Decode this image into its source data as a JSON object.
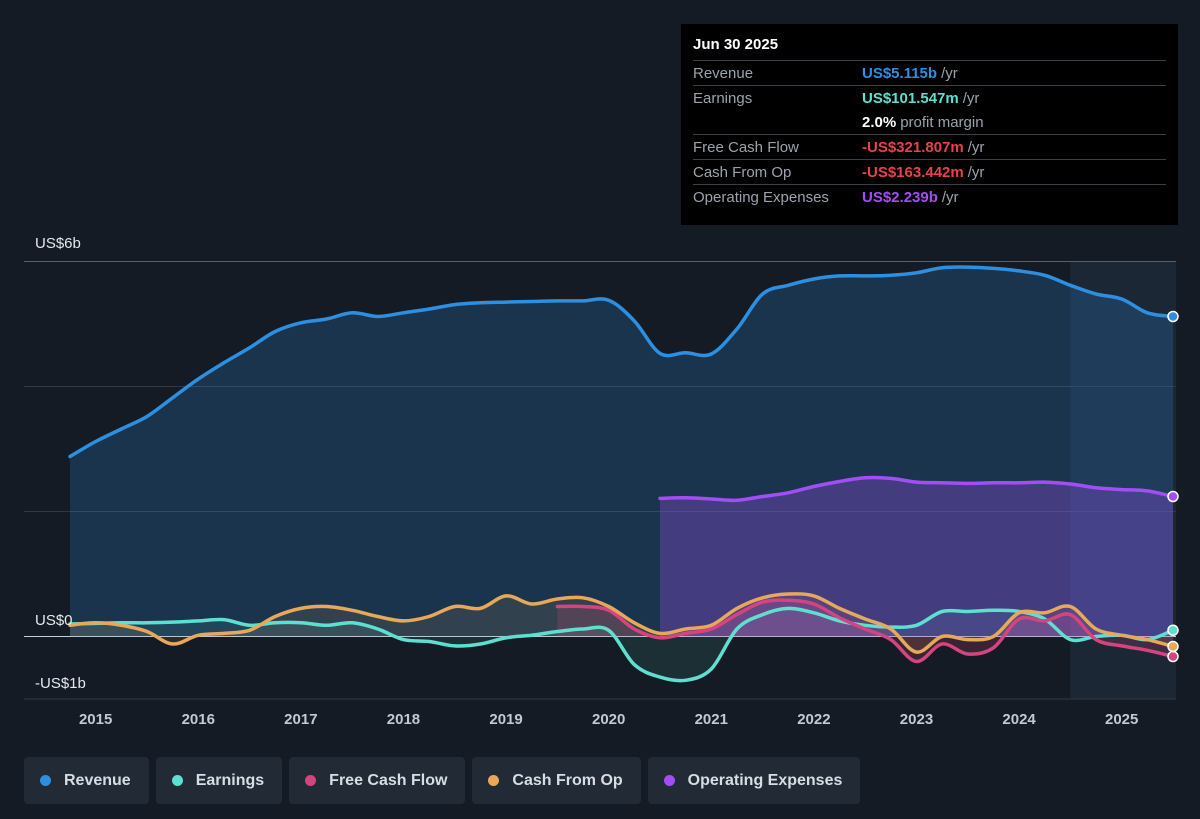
{
  "tooltip": {
    "date": "Jun 30 2025",
    "rows": [
      {
        "label": "Revenue",
        "value": "US$5.115b",
        "unit": "/yr",
        "color": "#2e8fe0"
      },
      {
        "label": "Earnings",
        "value": "US$101.547m",
        "unit": "/yr",
        "color": "#5ee0d0"
      },
      {
        "label": "",
        "value": "2.0%",
        "unit": "profit margin",
        "color": "#ffffff"
      },
      {
        "label": "Free Cash Flow",
        "value": "-US$321.807m",
        "unit": "/yr",
        "color": "#e8424e"
      },
      {
        "label": "Cash From Op",
        "value": "-US$163.442m",
        "unit": "/yr",
        "color": "#e8424e"
      },
      {
        "label": "Operating Expenses",
        "value": "US$2.239b",
        "unit": "/yr",
        "color": "#a24ef5"
      }
    ]
  },
  "legend": [
    {
      "label": "Revenue",
      "color": "#2e8fe0"
    },
    {
      "label": "Earnings",
      "color": "#5ee0d0"
    },
    {
      "label": "Free Cash Flow",
      "color": "#d4457f"
    },
    {
      "label": "Cash From Op",
      "color": "#e8a85a"
    },
    {
      "label": "Operating Expenses",
      "color": "#a24ef5"
    }
  ],
  "chart_data": {
    "type": "line",
    "y_tick_labels": [
      "US$6b",
      "US$0",
      "-US$1b"
    ],
    "ylim": [
      -1,
      6
    ],
    "xlim": [
      2014.55,
      2025.5
    ],
    "x_ticks": [
      "2015",
      "2016",
      "2017",
      "2018",
      "2019",
      "2020",
      "2021",
      "2022",
      "2023",
      "2024",
      "2025"
    ],
    "grid": true,
    "legend_position": "bottom",
    "forecast_shade_from": 2024.5,
    "series": [
      {
        "name": "Revenue",
        "color": "#2e8fe0",
        "x": [
          2014.75,
          2015.0,
          2015.25,
          2015.5,
          2015.75,
          2016.0,
          2016.25,
          2016.5,
          2016.75,
          2017.0,
          2017.25,
          2017.5,
          2017.75,
          2018.0,
          2018.25,
          2018.5,
          2018.75,
          2019.0,
          2019.25,
          2019.5,
          2019.75,
          2020.0,
          2020.25,
          2020.5,
          2020.75,
          2021.0,
          2021.25,
          2021.5,
          2021.75,
          2022.0,
          2022.25,
          2022.5,
          2022.75,
          2023.0,
          2023.25,
          2023.5,
          2023.75,
          2024.0,
          2024.25,
          2024.5,
          2024.75,
          2025.0,
          2025.25,
          2025.5
        ],
        "y": [
          2.88,
          3.12,
          3.32,
          3.52,
          3.82,
          4.12,
          4.38,
          4.62,
          4.88,
          5.02,
          5.08,
          5.18,
          5.12,
          5.18,
          5.24,
          5.31,
          5.34,
          5.35,
          5.36,
          5.37,
          5.37,
          5.38,
          5.05,
          4.53,
          4.54,
          4.52,
          4.92,
          5.48,
          5.62,
          5.72,
          5.77,
          5.77,
          5.78,
          5.82,
          5.9,
          5.91,
          5.89,
          5.85,
          5.78,
          5.62,
          5.48,
          5.4,
          5.18,
          5.12
        ]
      },
      {
        "name": "Earnings",
        "color": "#5ee0d0",
        "x": [
          2014.75,
          2015.0,
          2015.25,
          2015.5,
          2015.75,
          2016.0,
          2016.25,
          2016.5,
          2016.75,
          2017.0,
          2017.25,
          2017.5,
          2017.75,
          2018.0,
          2018.25,
          2018.5,
          2018.75,
          2019.0,
          2019.25,
          2019.5,
          2019.75,
          2020.0,
          2020.25,
          2020.5,
          2020.75,
          2021.0,
          2021.25,
          2021.5,
          2021.75,
          2022.0,
          2022.25,
          2022.5,
          2022.75,
          2023.0,
          2023.25,
          2023.5,
          2023.75,
          2024.0,
          2024.25,
          2024.5,
          2024.75,
          2025.0,
          2025.25,
          2025.5
        ],
        "y": [
          0.2,
          0.21,
          0.22,
          0.22,
          0.23,
          0.25,
          0.27,
          0.18,
          0.22,
          0.22,
          0.18,
          0.22,
          0.12,
          -0.05,
          -0.08,
          -0.15,
          -0.12,
          -0.02,
          0.02,
          0.08,
          0.12,
          0.1,
          -0.45,
          -0.65,
          -0.7,
          -0.52,
          0.12,
          0.35,
          0.45,
          0.38,
          0.25,
          0.18,
          0.15,
          0.18,
          0.4,
          0.4,
          0.42,
          0.4,
          0.28,
          -0.05,
          0.0,
          0.02,
          -0.05,
          0.1
        ]
      },
      {
        "name": "Free Cash Flow",
        "color": "#d4457f",
        "x": [
          2019.5,
          2019.75,
          2020.0,
          2020.25,
          2020.5,
          2020.75,
          2021.0,
          2021.25,
          2021.5,
          2021.75,
          2022.0,
          2022.25,
          2022.5,
          2022.75,
          2023.0,
          2023.25,
          2023.5,
          2023.75,
          2024.0,
          2024.25,
          2024.5,
          2024.75,
          2025.0,
          2025.25,
          2025.5
        ],
        "y": [
          0.48,
          0.48,
          0.42,
          0.12,
          -0.02,
          0.05,
          0.12,
          0.35,
          0.55,
          0.58,
          0.52,
          0.3,
          0.12,
          -0.05,
          -0.4,
          -0.12,
          -0.28,
          -0.18,
          0.28,
          0.25,
          0.35,
          -0.05,
          -0.15,
          -0.22,
          -0.32
        ]
      },
      {
        "name": "Cash From Op",
        "color": "#e8a85a",
        "x": [
          2014.75,
          2015.0,
          2015.25,
          2015.5,
          2015.75,
          2016.0,
          2016.25,
          2016.5,
          2016.75,
          2017.0,
          2017.25,
          2017.5,
          2017.75,
          2018.0,
          2018.25,
          2018.5,
          2018.75,
          2019.0,
          2019.25,
          2019.5,
          2019.75,
          2020.0,
          2020.25,
          2020.5,
          2020.75,
          2021.0,
          2021.25,
          2021.5,
          2021.75,
          2022.0,
          2022.25,
          2022.5,
          2022.75,
          2023.0,
          2023.25,
          2023.5,
          2023.75,
          2024.0,
          2024.25,
          2024.5,
          2024.75,
          2025.0,
          2025.25,
          2025.5
        ],
        "y": [
          0.18,
          0.22,
          0.18,
          0.08,
          -0.12,
          0.02,
          0.05,
          0.1,
          0.32,
          0.45,
          0.48,
          0.42,
          0.32,
          0.25,
          0.32,
          0.48,
          0.45,
          0.65,
          0.52,
          0.6,
          0.62,
          0.48,
          0.22,
          0.05,
          0.12,
          0.18,
          0.45,
          0.62,
          0.68,
          0.65,
          0.45,
          0.28,
          0.12,
          -0.25,
          0.0,
          -0.05,
          0.0,
          0.38,
          0.38,
          0.48,
          0.12,
          0.02,
          -0.05,
          -0.16
        ]
      },
      {
        "name": "Operating Expenses",
        "color": "#a24ef5",
        "x": [
          2020.5,
          2020.75,
          2021.0,
          2021.25,
          2021.5,
          2021.75,
          2022.0,
          2022.25,
          2022.5,
          2022.75,
          2023.0,
          2023.25,
          2023.5,
          2023.75,
          2024.0,
          2024.25,
          2024.5,
          2024.75,
          2025.0,
          2025.25,
          2025.5
        ],
        "y": [
          2.21,
          2.22,
          2.2,
          2.18,
          2.24,
          2.3,
          2.4,
          2.48,
          2.54,
          2.53,
          2.47,
          2.46,
          2.45,
          2.46,
          2.46,
          2.47,
          2.44,
          2.38,
          2.35,
          2.33,
          2.24
        ]
      }
    ]
  }
}
